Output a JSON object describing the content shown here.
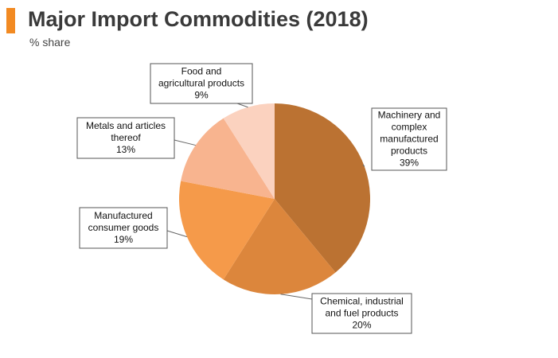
{
  "header": {
    "title": "Major Import Commodities (2018)",
    "subtitle": "% share",
    "accent_color": "#f28a22"
  },
  "chart_data": {
    "type": "pie",
    "title": "Major Import Commodities (2018)",
    "subtitle": "% share",
    "slices": [
      {
        "label": "Machinery and complex manufactured products",
        "value": 39,
        "display": "39%",
        "color": "#bb7232"
      },
      {
        "label": "Chemical, industrial and fuel products",
        "value": 20,
        "display": "20%",
        "color": "#dc863c"
      },
      {
        "label": "Manufactured consumer goods",
        "value": 19,
        "display": "19%",
        "color": "#f59a4a"
      },
      {
        "label": "Metals and articles thereof",
        "value": 13,
        "display": "13%",
        "color": "#f8b48f"
      },
      {
        "label": "Food and agricultural products",
        "value": 9,
        "display": "9%",
        "color": "#fbd2bf"
      }
    ],
    "label_lines": [
      [
        "Machinery and",
        "complex",
        "manufactured",
        "products",
        "39%"
      ],
      [
        "Chemical, industrial",
        "and fuel products",
        "20%"
      ],
      [
        "Manufactured",
        "consumer goods",
        "19%"
      ],
      [
        "Metals and articles",
        "thereof",
        "13%"
      ],
      [
        "Food and",
        "agricultural products",
        "9%"
      ]
    ],
    "start_angle_deg": 0,
    "direction": "clockwise"
  }
}
